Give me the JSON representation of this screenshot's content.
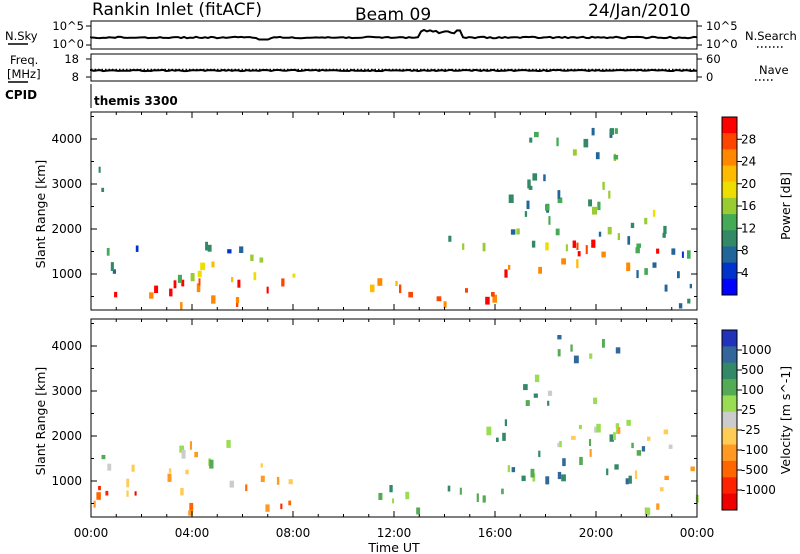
{
  "header": {
    "station": "Rankin Inlet (fitACF)",
    "beam": "Beam 09",
    "date": "24/Jan/2010"
  },
  "top_panels": {
    "nsky_label": "N.Sky",
    "nsky_ticks": [
      "10^5",
      "10^0"
    ],
    "nsearch_label": "N.Search",
    "nsearch_ticks": [
      "10^5",
      "10^0"
    ],
    "freq_label_1": "Freq.",
    "freq_label_2": "[MHz]",
    "freq_ticks": [
      "18",
      "8"
    ],
    "nave_label": "Nave",
    "nave_ticks": [
      "60",
      "0"
    ],
    "cpid_label": "CPID",
    "cpid_value": "themis 3300"
  },
  "chart_data": [
    {
      "type": "heatmap",
      "panel": "power",
      "ylabel": "Slant Range [km]",
      "ylim": [
        200,
        4600
      ],
      "yticks": [
        "1000",
        "2000",
        "3000",
        "4000"
      ],
      "ytick_values": [
        1000,
        2000,
        3000,
        4000
      ],
      "xlim": [
        0,
        24
      ],
      "colorbar_label": "Power [dB]",
      "colorbar_ticks": [
        "28",
        "24",
        "20",
        "16",
        "12",
        "8",
        "4"
      ],
      "colorbar_colors": [
        "#ff0000",
        "#ff4400",
        "#ff8800",
        "#ffbb00",
        "#eedd00",
        "#99cc33",
        "#44aa55",
        "#338866",
        "#226699",
        "#0033cc",
        "#0000ff"
      ],
      "regions": [
        {
          "t0": 0.0,
          "t1": 8.2,
          "r0": 200,
          "r1": 800,
          "level": 0.85
        },
        {
          "t0": 0.0,
          "t1": 8.0,
          "r0": 800,
          "r1": 1000,
          "level": 0.5
        },
        {
          "t0": 3.0,
          "t1": 7.0,
          "r0": 1050,
          "r1": 1350,
          "level": 0.6
        },
        {
          "t0": 0.0,
          "t1": 2.5,
          "r0": 1000,
          "r1": 1700,
          "level": 0.2
        },
        {
          "t0": 3.0,
          "t1": 6.5,
          "r0": 1350,
          "r1": 1750,
          "level": 0.25
        },
        {
          "t0": 0.1,
          "t1": 0.6,
          "r0": 2500,
          "r1": 3300,
          "level": 0.15
        },
        {
          "t0": 11.0,
          "t1": 13.0,
          "r0": 200,
          "r1": 800,
          "level": 0.8
        },
        {
          "t0": 13.5,
          "t1": 16.5,
          "r0": 200,
          "r1": 800,
          "level": 0.85
        },
        {
          "t0": 16.0,
          "t1": 22.5,
          "r0": 900,
          "r1": 1600,
          "level": 0.9
        },
        {
          "t0": 14.0,
          "t1": 23.0,
          "r0": 1500,
          "r1": 2300,
          "level": 0.4
        },
        {
          "t0": 16.5,
          "t1": 21.0,
          "r0": 2300,
          "r1": 3200,
          "level": 0.35
        },
        {
          "t0": 17.0,
          "t1": 21.0,
          "r0": 3500,
          "r1": 4300,
          "level": 0.3
        },
        {
          "t0": 21.5,
          "t1": 24.0,
          "r0": 200,
          "r1": 1500,
          "level": 0.3
        }
      ]
    },
    {
      "type": "heatmap",
      "panel": "velocity",
      "ylabel": "Slant Range [km]",
      "ylim": [
        200,
        4600
      ],
      "yticks": [
        "1000",
        "2000",
        "3000",
        "4000"
      ],
      "ytick_values": [
        1000,
        2000,
        3000,
        4000
      ],
      "xlim": [
        0,
        24
      ],
      "xticks": [
        "00:00",
        "04:00",
        "08:00",
        "12:00",
        "16:00",
        "20:00",
        "00:00"
      ],
      "xlabel": "Time UT",
      "colorbar_label": "Velocity [m s^-1]",
      "colorbar_ticks": [
        "1000",
        "500",
        "100",
        "25",
        "-25",
        "-100",
        "-500",
        "-1000"
      ],
      "colorbar_colors": [
        "#2233bb",
        "#336699",
        "#338866",
        "#55aa55",
        "#99dd55",
        "#cccccc",
        "#ffcc55",
        "#ff9922",
        "#ff6600",
        "#ff2200",
        "#ee0000"
      ],
      "regions": [
        {
          "t0": 0.0,
          "t1": 8.2,
          "r0": 200,
          "r1": 850,
          "level": 0.25
        },
        {
          "t0": 0.0,
          "t1": 8.0,
          "r0": 850,
          "r1": 1050,
          "level": 0.45
        },
        {
          "t0": 3.0,
          "t1": 7.0,
          "r0": 1100,
          "r1": 1800,
          "level": 0.5
        },
        {
          "t0": 0.0,
          "t1": 2.0,
          "r0": 1000,
          "r1": 1500,
          "level": 0.5
        },
        {
          "t0": 11.0,
          "t1": 13.0,
          "r0": 200,
          "r1": 800,
          "level": 0.7
        },
        {
          "t0": 13.5,
          "t1": 16.5,
          "r0": 200,
          "r1": 800,
          "level": 0.72
        },
        {
          "t0": 16.0,
          "t1": 22.0,
          "r0": 900,
          "r1": 1700,
          "level": 0.75
        },
        {
          "t0": 15.5,
          "t1": 21.0,
          "r0": 1700,
          "r1": 2300,
          "level": 0.65
        },
        {
          "t0": 19.0,
          "t1": 23.0,
          "r0": 1500,
          "r1": 2300,
          "level": 0.5
        },
        {
          "t0": 21.5,
          "t1": 24.0,
          "r0": 200,
          "r1": 1500,
          "level": 0.45
        },
        {
          "t0": 18.0,
          "t1": 21.0,
          "r0": 3400,
          "r1": 4200,
          "level": 0.7
        },
        {
          "t0": 17.0,
          "t1": 20.0,
          "r0": 2600,
          "r1": 3200,
          "level": 0.68
        }
      ]
    }
  ]
}
